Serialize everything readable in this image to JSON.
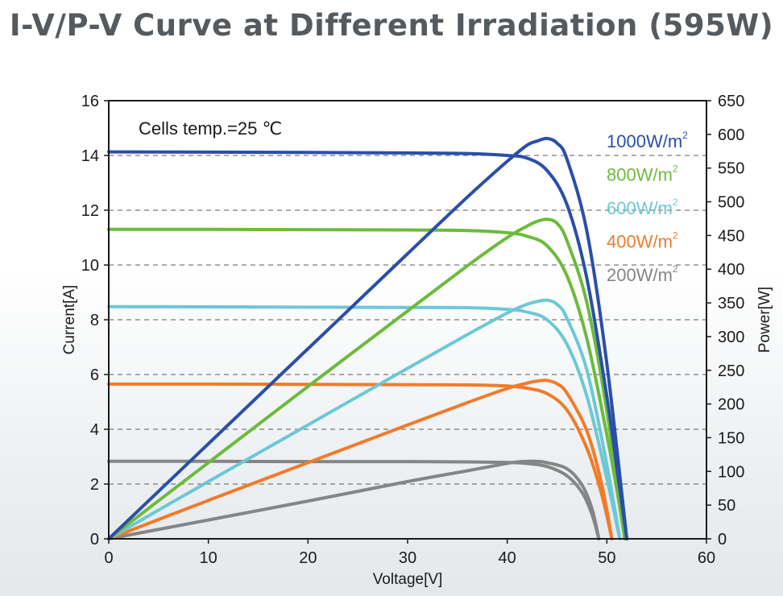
{
  "title": "I-V/P-V Curve at Different Irradiation (595W)",
  "chart_data": {
    "type": "line",
    "xlabel": "Voltage[V]",
    "ylabel_left": "Current[A]",
    "ylabel_right": "Power[W]",
    "xlim": [
      0,
      60
    ],
    "ylim_left": [
      0,
      16
    ],
    "ylim_right": [
      0,
      650
    ],
    "x_ticks": [
      "0",
      "10",
      "20",
      "30",
      "40",
      "50",
      "60"
    ],
    "y_ticks_left": [
      "0",
      "2",
      "4",
      "6",
      "8",
      "10",
      "12",
      "14",
      "16"
    ],
    "y_ticks_right": [
      "0",
      "50",
      "100",
      "150",
      "200",
      "250",
      "300",
      "350",
      "400",
      "450",
      "500",
      "550",
      "600",
      "650"
    ],
    "grid": "horizontal-dashed",
    "annotation": "Cells temp.=25 ℃",
    "legend_position": "top-right",
    "series": [
      {
        "name": "1000W/m²",
        "legend_text": "1000W/m",
        "legend_sup": "2",
        "color": "#2a4fa8",
        "iv": {
          "x": [
            0,
            10,
            20,
            30,
            36,
            40,
            42,
            44,
            46,
            48,
            50,
            51,
            52
          ],
          "y": [
            14.13,
            14.12,
            14.11,
            14.09,
            14.07,
            14.0,
            13.9,
            13.45,
            12.2,
            9.5,
            5.2,
            2.6,
            0
          ]
        },
        "pv": {
          "x": [
            0,
            10,
            20,
            30,
            36,
            40,
            42,
            43,
            44,
            45,
            46,
            48,
            50,
            52
          ],
          "y": [
            0,
            141,
            282,
            423,
            507,
            560,
            584,
            590,
            594,
            587,
            563,
            456,
            260,
            0
          ]
        }
      },
      {
        "name": "800W/m²",
        "legend_text": "800W/m",
        "legend_sup": "2",
        "color": "#6cbb3c",
        "iv": {
          "x": [
            0,
            10,
            20,
            30,
            36,
            40,
            42,
            44,
            46,
            48,
            50,
            51,
            51.8
          ],
          "y": [
            11.3,
            11.3,
            11.29,
            11.28,
            11.26,
            11.18,
            11.05,
            10.7,
            9.6,
            7.3,
            3.8,
            1.8,
            0
          ]
        },
        "pv": {
          "x": [
            0,
            10,
            20,
            30,
            36,
            40,
            42,
            43,
            44,
            45,
            46,
            48,
            50,
            51.8
          ],
          "y": [
            0,
            113,
            226,
            338,
            405,
            447,
            464,
            471,
            474,
            468,
            442,
            350,
            190,
            0
          ]
        }
      },
      {
        "name": "600W/m²",
        "legend_text": "600W/m",
        "legend_sup": "2",
        "color": "#6cc8d6",
        "iv": {
          "x": [
            0,
            10,
            20,
            30,
            36,
            40,
            42,
            44,
            46,
            48,
            50,
            51.3
          ],
          "y": [
            8.48,
            8.47,
            8.46,
            8.45,
            8.44,
            8.38,
            8.28,
            8.0,
            7.1,
            5.2,
            2.2,
            0
          ]
        },
        "pv": {
          "x": [
            0,
            10,
            20,
            30,
            36,
            40,
            42,
            43,
            44,
            45,
            46,
            48,
            50,
            51.3
          ],
          "y": [
            0,
            85,
            169,
            253,
            303,
            335,
            348,
            352,
            354,
            348,
            327,
            250,
            110,
            0
          ]
        }
      },
      {
        "name": "400W/m²",
        "legend_text": "400W/m",
        "legend_sup": "2",
        "color": "#f07b2a",
        "iv": {
          "x": [
            0,
            10,
            20,
            30,
            36,
            40,
            42,
            44,
            46,
            48,
            49.5,
            50.5
          ],
          "y": [
            5.65,
            5.65,
            5.64,
            5.63,
            5.62,
            5.58,
            5.5,
            5.3,
            4.7,
            3.3,
            1.6,
            0
          ]
        },
        "pv": {
          "x": [
            0,
            10,
            20,
            30,
            36,
            40,
            42,
            43,
            44,
            45,
            46,
            48,
            49.5,
            50.5
          ],
          "y": [
            0,
            57,
            113,
            169,
            202,
            223,
            231,
            234,
            235,
            230,
            216,
            160,
            80,
            0
          ]
        }
      },
      {
        "name": "200W/m²",
        "legend_text": "200W/m",
        "legend_sup": "2",
        "color": "#858585",
        "iv": {
          "x": [
            0,
            10,
            20,
            30,
            36,
            40,
            42,
            44,
            46,
            47.5,
            48.5,
            49.2
          ],
          "y": [
            2.83,
            2.83,
            2.82,
            2.82,
            2.81,
            2.79,
            2.75,
            2.64,
            2.3,
            1.7,
            0.9,
            0
          ]
        },
        "pv": {
          "x": [
            0,
            10,
            20,
            30,
            36,
            40,
            41,
            42,
            43,
            44,
            46,
            47.5,
            48.5,
            49.2
          ],
          "y": [
            0,
            28,
            56,
            85,
            101,
            112,
            114,
            115,
            115,
            113,
            104,
            80,
            45,
            0
          ]
        }
      }
    ]
  }
}
